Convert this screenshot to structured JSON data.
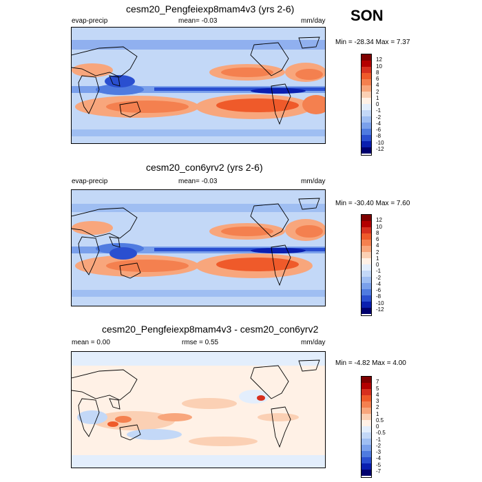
{
  "season": "SON",
  "units": "mm/day",
  "panels": [
    {
      "title": "cesm20_Pengfeiexp8mam4v3 (yrs 2-6)",
      "left_label": "evap-precip",
      "center_label": "mean=  -0.03",
      "right_label": "mm/day",
      "minmax": "Min = -28.34 Max =   7.37",
      "colorbar": {
        "labels": [
          "12",
          "10",
          "8",
          "6",
          "4",
          "2",
          "1",
          "0",
          "-1",
          "-2",
          "-4",
          "-6",
          "-8",
          "-10",
          "-12"
        ],
        "colors": [
          "#7f0000",
          "#b30000",
          "#d7301f",
          "#ef5a2a",
          "#f4804f",
          "#f8a67c",
          "#fbd0b4",
          "#fff1e6",
          "#e3eefc",
          "#c3d8f7",
          "#9fbef2",
          "#7aa0eb",
          "#4f7be0",
          "#2a4fd0",
          "#0a1fb0",
          "#00006e"
        ]
      }
    },
    {
      "title": "cesm20_con6yrv2 (yrs 2-6)",
      "left_label": "evap-precip",
      "center_label": "mean=  -0.03",
      "right_label": "mm/day",
      "minmax": "Min = -30.40 Max =   7.60",
      "colorbar": {
        "labels": [
          "12",
          "10",
          "8",
          "6",
          "4",
          "2",
          "1",
          "0",
          "-1",
          "-2",
          "-4",
          "-6",
          "-8",
          "-10",
          "-12"
        ],
        "colors": [
          "#7f0000",
          "#b30000",
          "#d7301f",
          "#ef5a2a",
          "#f4804f",
          "#f8a67c",
          "#fbd0b4",
          "#fff1e6",
          "#e3eefc",
          "#c3d8f7",
          "#9fbef2",
          "#7aa0eb",
          "#4f7be0",
          "#2a4fd0",
          "#0a1fb0",
          "#00006e"
        ]
      }
    },
    {
      "title": "cesm20_Pengfeiexp8mam4v3 - cesm20_con6yrv2",
      "left_label": "mean =   0.00",
      "center_label": "rmse =   0.55",
      "right_label": "mm/day",
      "minmax": "Min = -4.82 Max =   4.00",
      "colorbar": {
        "labels": [
          "7",
          "5",
          "4",
          "3",
          "2",
          "1",
          "0.5",
          "0",
          "-0.5",
          "-1",
          "-2",
          "-3",
          "-4",
          "-5",
          "-7"
        ],
        "colors": [
          "#7f0000",
          "#b30000",
          "#d7301f",
          "#ef5a2a",
          "#f4804f",
          "#f8a67c",
          "#fbd0b4",
          "#fff1e6",
          "#e3eefc",
          "#c3d8f7",
          "#9fbef2",
          "#7aa0eb",
          "#4f7be0",
          "#2a4fd0",
          "#0a1fb0",
          "#00006e"
        ]
      }
    }
  ]
}
